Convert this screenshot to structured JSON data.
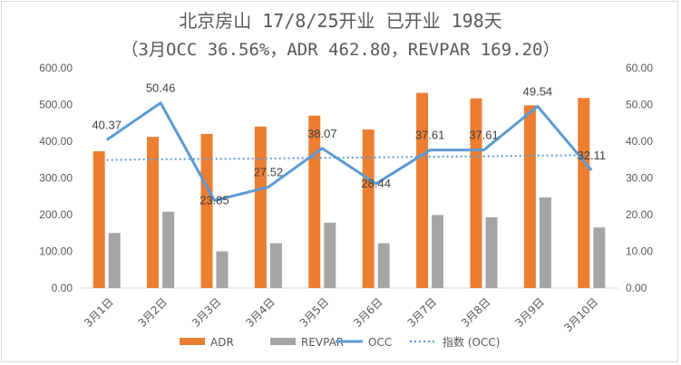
{
  "chart_data": {
    "type": "bar",
    "title": "北京房山 17/8/25开业 已开业 198天",
    "subtitle": "（3月OCC 36.56%，ADR 462.80，REVPAR 169.20）",
    "categories": [
      "3月1日",
      "3月2日",
      "3月3日",
      "3月4日",
      "3月5日",
      "3月6日",
      "3月7日",
      "3月8日",
      "3月9日",
      "3月10日"
    ],
    "series": [
      {
        "name": "ADR",
        "type": "bar",
        "axis": "left",
        "color": "#ed7d31",
        "values": [
          373,
          412,
          420,
          440,
          470,
          432,
          532,
          517,
          498,
          518
        ]
      },
      {
        "name": "REVPAR",
        "type": "bar",
        "axis": "left",
        "color": "#a5a5a5",
        "values": [
          150,
          208,
          100,
          122,
          178,
          122,
          199,
          193,
          247,
          165
        ]
      },
      {
        "name": "OCC",
        "type": "line",
        "axis": "right",
        "color": "#5b9bd5",
        "values": [
          40.37,
          50.46,
          23.85,
          27.52,
          38.07,
          28.44,
          37.61,
          37.61,
          49.54,
          32.11
        ],
        "labels": [
          "40.37",
          "50.46",
          "23.85",
          "27.52",
          "38.07",
          "28.44",
          "37.61",
          "37.61",
          "49.54",
          "32.11"
        ]
      },
      {
        "name": "指数 (OCC)",
        "type": "dotted-line",
        "axis": "right",
        "color": "#5b9bd5",
        "values": [
          34.9,
          35.1,
          35.2,
          35.3,
          35.5,
          35.6,
          35.8,
          35.9,
          36.1,
          36.2
        ]
      }
    ],
    "ylim_left": [
      0,
      600
    ],
    "ylim_right": [
      0,
      60
    ],
    "yticks_left": [
      "0.00",
      "100.00",
      "200.00",
      "300.00",
      "400.00",
      "500.00",
      "600.00"
    ],
    "yticks_right": [
      "0.00",
      "10.00",
      "20.00",
      "30.00",
      "40.00",
      "50.00",
      "60.00"
    ],
    "grid": false,
    "legend_position": "bottom"
  }
}
